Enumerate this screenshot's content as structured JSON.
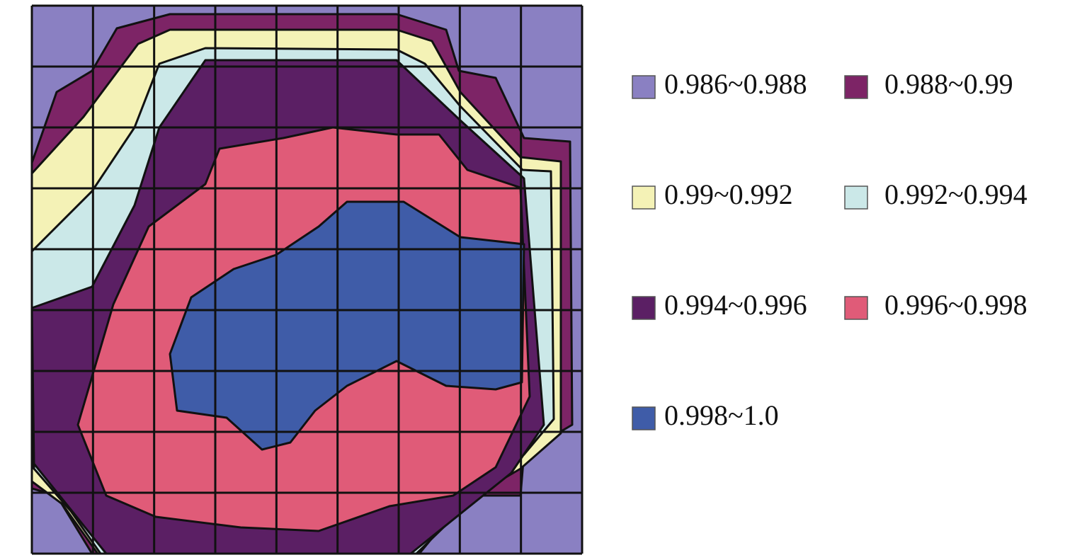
{
  "legend": {
    "items": [
      {
        "label": "0.986~0.988",
        "color": "#8a80c2"
      },
      {
        "label": "0.988~0.99",
        "color": "#7d2466"
      },
      {
        "label": "0.99~0.992",
        "color": "#f4f2b6"
      },
      {
        "label": "0.992~0.994",
        "color": "#cbe8e8"
      },
      {
        "label": "0.994~0.996",
        "color": "#5b1f64"
      },
      {
        "label": "0.996~0.998",
        "color": "#e05b78"
      },
      {
        "label": "0.998~1.0",
        "color": "#3f5ca8"
      }
    ]
  }
}
